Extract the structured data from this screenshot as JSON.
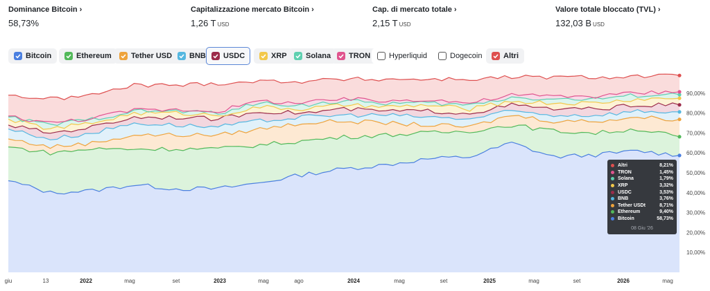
{
  "stats": [
    {
      "title": "Dominance Bitcoin",
      "value": "58,73%",
      "unit": ""
    },
    {
      "title": "Capitalizzazione mercato Bitcoin",
      "value": "1,26 T",
      "unit": "USD"
    },
    {
      "title": "Cap. di mercato totale",
      "value": "2,15 T",
      "unit": "USD"
    },
    {
      "title": "Valore totale bloccato (TVL)",
      "value": "132,03 B",
      "unit": "USD"
    }
  ],
  "legend": [
    {
      "label": "Bitcoin",
      "color": "#4a7fe0",
      "checked": true
    },
    {
      "label": "Ethereum",
      "color": "#52b95a",
      "checked": true
    },
    {
      "label": "Tether USDt",
      "color": "#eea33c",
      "checked": true
    },
    {
      "label": "BNB",
      "color": "#55b7e0",
      "checked": true
    },
    {
      "label": "USDC",
      "color": "#9c2b4a",
      "checked": true
    },
    {
      "label": "XRP",
      "color": "#f2c84b",
      "checked": true
    },
    {
      "label": "Solana",
      "color": "#5fd0b0",
      "checked": true
    },
    {
      "label": "TRON",
      "color": "#e0548e",
      "checked": true
    },
    {
      "label": "Hyperliquid",
      "color": "#555555",
      "checked": false
    },
    {
      "label": "Dogecoin",
      "color": "#555555",
      "checked": false
    },
    {
      "label": "Altri",
      "color": "#de4f4f",
      "checked": true
    }
  ],
  "chart_data": {
    "type": "line",
    "ylim": [
      0,
      100
    ],
    "y_ticks": [
      "10,00%",
      "20,00%",
      "30,00%",
      "40,00%",
      "50,00%",
      "60,00%",
      "70,00%",
      "80,00%",
      "90,00%"
    ],
    "x_ticks": [
      {
        "label": "giu",
        "bold": false
      },
      {
        "label": "13",
        "bold": false
      },
      {
        "label": "2022",
        "bold": true
      },
      {
        "label": "mag",
        "bold": false
      },
      {
        "label": "set",
        "bold": false
      },
      {
        "label": "2023",
        "bold": true
      },
      {
        "label": "mag",
        "bold": false
      },
      {
        "label": "ago",
        "bold": false
      },
      {
        "label": "2024",
        "bold": true
      },
      {
        "label": "mag",
        "bold": false
      },
      {
        "label": "set",
        "bold": false
      },
      {
        "label": "2025",
        "bold": true
      },
      {
        "label": "mag",
        "bold": false
      },
      {
        "label": "set",
        "bold": false
      },
      {
        "label": "2026",
        "bold": true
      },
      {
        "label": "mag",
        "bold": false
      }
    ],
    "x": [
      "giu",
      "13",
      "2022",
      "mag",
      "set",
      "2023",
      "mag",
      "ago",
      "2024",
      "mag",
      "set",
      "2025",
      "mag",
      "set",
      "2026",
      "mag",
      "08 Giu '26"
    ],
    "series": [
      {
        "name": "Bitcoin",
        "color": "#4a7fe0",
        "fill": "#dae4fb",
        "values": [
          46,
          40,
          41,
          44,
          42,
          42,
          45,
          49,
          52,
          54,
          57,
          58,
          65,
          58,
          59,
          61,
          58.73
        ]
      },
      {
        "name": "Ethereum",
        "color": "#52b95a",
        "fill": "#dcf3dc",
        "values": [
          63,
          60,
          62,
          62,
          62,
          62,
          64,
          66,
          68,
          69,
          70,
          71,
          74,
          71,
          70,
          72,
          68.13
        ]
      },
      {
        "name": "Tether USDt",
        "color": "#eea33c",
        "fill": "#fde9d3",
        "values": [
          67,
          63,
          65,
          69,
          69,
          69,
          72,
          75,
          76,
          75,
          74,
          73,
          79,
          76,
          76,
          78,
          76.84
        ]
      },
      {
        "name": "BNB",
        "color": "#55b7e0",
        "fill": "#e1f1fa",
        "values": [
          72,
          67,
          70,
          75,
          74,
          73,
          76,
          78,
          79,
          79,
          78,
          77,
          81,
          79,
          79,
          81,
          80.6
        ]
      },
      {
        "name": "USDC",
        "color": "#9c2b4a",
        "fill": "#f3d7df",
        "values": [
          74,
          70,
          73,
          78,
          78,
          77,
          81,
          80,
          82,
          81,
          81,
          80,
          84,
          82,
          82,
          84,
          84.13
        ]
      },
      {
        "name": "XRP",
        "color": "#f2c84b",
        "fill": "#fdf3d5",
        "values": [
          77,
          72,
          75,
          80,
          80,
          79,
          83,
          82,
          84,
          83,
          84,
          82,
          86,
          85,
          85,
          87,
          87.45
        ]
      },
      {
        "name": "Solana",
        "color": "#5fd0b0",
        "fill": "#dcf5ee",
        "values": [
          78,
          74,
          77,
          81,
          81,
          80,
          85,
          84,
          86,
          85,
          85,
          84,
          88,
          87,
          87,
          89,
          89.24
        ]
      },
      {
        "name": "TRON",
        "color": "#e0548e",
        "fill": "#f8dbe8",
        "values": [
          78.5,
          75,
          77.5,
          81.5,
          81.8,
          81,
          86,
          85,
          87,
          86,
          87,
          85,
          89,
          88.5,
          88.5,
          90.2,
          90.69
        ]
      },
      {
        "name": "Altri",
        "color": "#de4f4f",
        "fill": "#fadcdc",
        "values": [
          89,
          87,
          89,
          94,
          94,
          95,
          96,
          96,
          97,
          97,
          97,
          97,
          98,
          98,
          98,
          98.5,
          98.9
        ]
      }
    ]
  },
  "tooltip": {
    "date": "08 Giu '26",
    "rows": [
      {
        "name": "Altri",
        "value": "8,21%",
        "color": "#de4f4f"
      },
      {
        "name": "TRON",
        "value": "1,45%",
        "color": "#e0548e"
      },
      {
        "name": "Solana",
        "value": "1,79%",
        "color": "#5fd0b0"
      },
      {
        "name": "XRP",
        "value": "3,32%",
        "color": "#f2c84b"
      },
      {
        "name": "USDC",
        "value": "3,53%",
        "color": "#9c2b4a"
      },
      {
        "name": "BNB",
        "value": "3,76%",
        "color": "#55b7e0"
      },
      {
        "name": "Tether USDt",
        "value": "8,71%",
        "color": "#eea33c"
      },
      {
        "name": "Ethereum",
        "value": "9,40%",
        "color": "#52b95a"
      },
      {
        "name": "Bitcoin",
        "value": "58,73%",
        "color": "#4a7fe0"
      }
    ]
  }
}
